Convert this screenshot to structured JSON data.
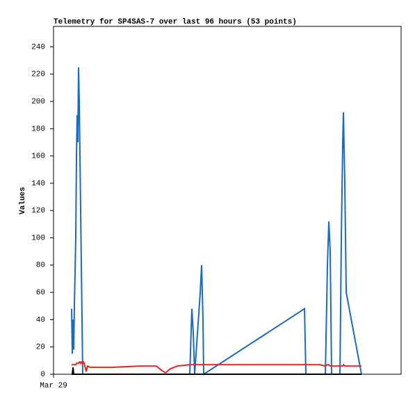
{
  "chart_data": {
    "type": "line",
    "title": "Telemetry for SP4SAS-7 over last 96 hours (53 points)",
    "y_label": "Values",
    "x": [
      5.0,
      5.18,
      5.38,
      5.57,
      5.76,
      5.95,
      6.14,
      6.34,
      6.53,
      6.72,
      6.91,
      7.1,
      7.3,
      7.49,
      7.68,
      7.87,
      8.06,
      8.26,
      8.45,
      8.64,
      9.02,
      9.41,
      10.18,
      15.94,
      23.62,
      28.42,
      29.76,
      30.91,
      32.26,
      34.18,
      37.63,
      38.21,
      38.6,
      38.98,
      40.52,
      40.9,
      41.28,
      41.47,
      69.32,
      69.7,
      73.54,
      75.08,
      75.65,
      76.04,
      76.42,
      76.8,
      79.11,
      79.49,
      79.88,
      80.07,
      80.45,
      80.84,
      85.06
    ],
    "series": [
      {
        "color": "#1a6ac0",
        "values": [
          48,
          15,
          40,
          18,
          50,
          75,
          100,
          160,
          190,
          170,
          225,
          200,
          160,
          120,
          80,
          40,
          0,
          0,
          0,
          0,
          0,
          0,
          0,
          0,
          0,
          0,
          0,
          0,
          0,
          0,
          0,
          48,
          30,
          0,
          60,
          80,
          40,
          0,
          48,
          0,
          0,
          0,
          80,
          112,
          90,
          0,
          0,
          100,
          170,
          192,
          140,
          60,
          0
        ]
      },
      {
        "color": "#e8231c",
        "values": [
          7,
          7,
          7,
          7,
          7,
          7,
          7,
          8,
          8,
          8,
          8,
          9,
          9,
          8,
          9,
          9,
          8,
          9,
          8,
          6,
          2,
          6,
          5,
          5,
          6,
          6,
          3,
          1,
          4,
          6,
          7,
          7,
          7,
          7,
          7,
          7,
          7,
          7,
          7,
          7,
          7,
          6,
          7,
          7,
          6,
          6,
          6,
          6,
          6,
          7,
          6,
          6,
          6
        ]
      },
      {
        "color": "#000000",
        "values": [
          0,
          0,
          5,
          0,
          0,
          0,
          0,
          0,
          0,
          0,
          0,
          0,
          0,
          0,
          0,
          0,
          0,
          0,
          0,
          0,
          0,
          0,
          0,
          0,
          0,
          0,
          0,
          0,
          0,
          0,
          0,
          0,
          0,
          0,
          0,
          0,
          0,
          0,
          0,
          0,
          0,
          0,
          0,
          0,
          0,
          0,
          0,
          0,
          0,
          0,
          0,
          0,
          0
        ]
      }
    ],
    "xlim": [
      0,
      96
    ],
    "xticks": [
      {
        "value": 0,
        "label": "Mar 29"
      }
    ],
    "ylim": [
      0,
      255
    ],
    "yticks": [
      0,
      20,
      40,
      60,
      80,
      100,
      120,
      140,
      160,
      180,
      200,
      220,
      240
    ],
    "grid": false
  }
}
